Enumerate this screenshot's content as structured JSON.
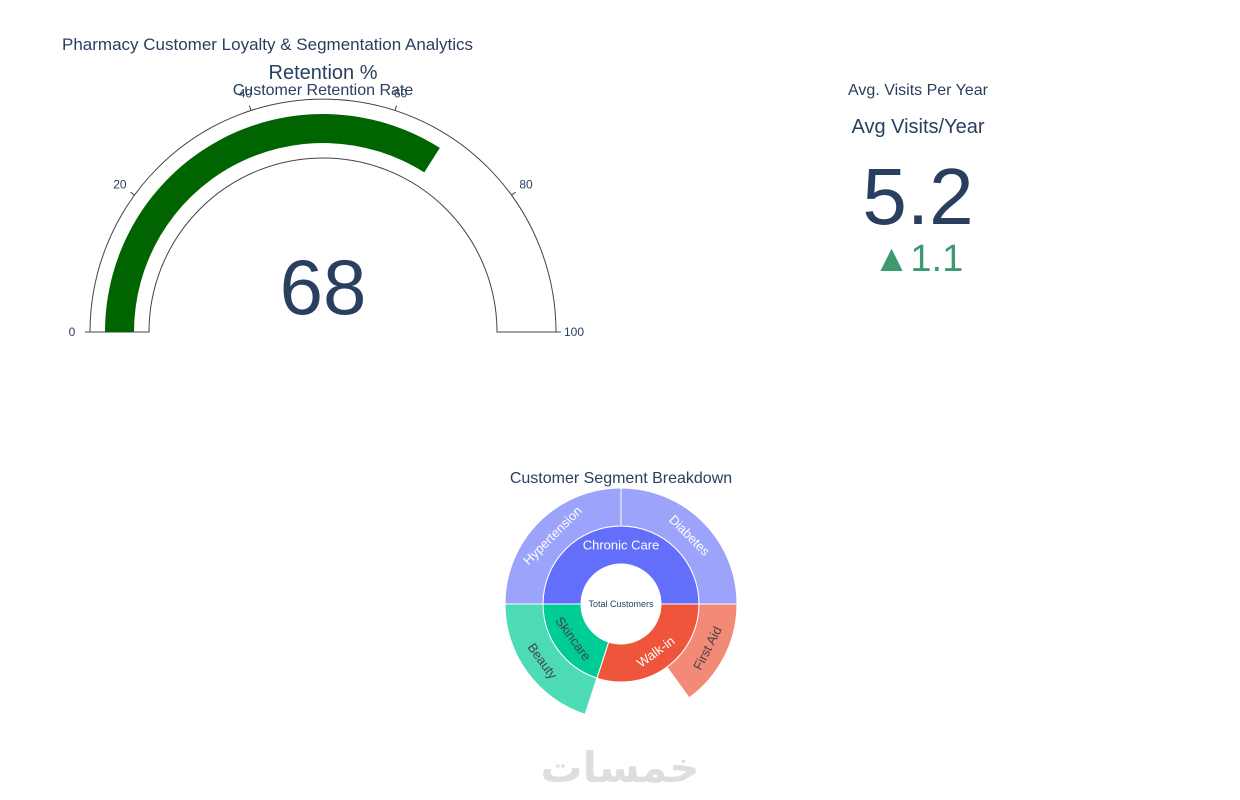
{
  "page_title": "Pharmacy Customer Loyalty & Segmentation Analytics",
  "watermark": "خمسات",
  "colors": {
    "text": "#2a3f5f",
    "gauge_bar": "#006400",
    "gauge_outline": "#444444",
    "delta_increasing": "#3d9970",
    "chronic_care": "#636efa",
    "chronic_care_leaf": "#9ca3fb",
    "walk_in": "#ef553b",
    "walk_in_leaf": "#f38a77",
    "skincare": "#00cc96",
    "skincare_leaf": "#4ddbb5"
  },
  "chart_data": [
    {
      "type": "gauge",
      "subplot_title": "Customer Retention Rate",
      "title": "Retention %",
      "value": 68,
      "axis_range": [
        0,
        100
      ],
      "ticks": [
        0,
        20,
        40,
        60,
        80,
        100
      ]
    },
    {
      "type": "indicator",
      "subplot_title": "Avg. Visits Per Year",
      "title": "Avg Visits/Year",
      "value": "5.2",
      "delta_symbol": "▲",
      "delta": "1.1"
    },
    {
      "type": "sunburst",
      "subplot_title": "Customer Segment Breakdown",
      "root": "Total Customers",
      "segments": [
        {
          "name": "Chronic Care",
          "value": 50,
          "children": [
            {
              "name": "Hypertension",
              "value": 25
            },
            {
              "name": "Diabetes",
              "value": 25
            }
          ]
        },
        {
          "name": "Walk-in",
          "value": 30,
          "children": [
            {
              "name": "First Aid",
              "value": 15
            }
          ]
        },
        {
          "name": "Skincare",
          "value": 20,
          "children": [
            {
              "name": "Beauty",
              "value": 20
            }
          ]
        }
      ]
    }
  ]
}
